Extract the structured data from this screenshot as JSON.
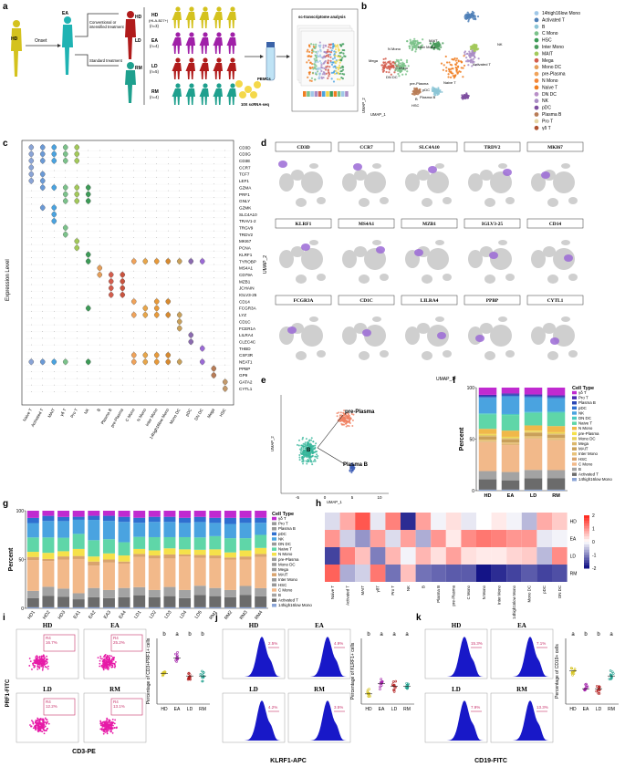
{
  "panels": {
    "a": "a",
    "b": "b",
    "c": "c",
    "d": "d",
    "e": "e",
    "f": "f",
    "g": "g",
    "h": "h",
    "i": "i",
    "j": "j",
    "k": "k"
  },
  "panel_a": {
    "hd": "HD",
    "ea": "EA",
    "onset": "Onset",
    "treat1": "Conventional or",
    "treat2": "intensified treatment",
    "standard": "Standard treatment",
    "hd_big": "HD",
    "ld": "LD",
    "rm": "RM",
    "groups": [
      {
        "label": "HD",
        "sub": "(HLA-B27+)",
        "n": "(n=3)"
      },
      {
        "label": "EA",
        "sub": "",
        "n": "(n=4)"
      },
      {
        "label": "LD",
        "sub": "",
        "n": "(n=5)"
      },
      {
        "label": "RM",
        "sub": "",
        "n": "(n=4)"
      }
    ],
    "pbmcs": "PBMCs",
    "tenx": "10X scRNA-seq",
    "sc_title": "sc-transcriptome analysis"
  },
  "panel_b": {
    "xlabel": "UMAP_1",
    "ylabel": "UMAP_2",
    "labels": [
      "N Mono",
      "C Mono",
      "Inter Mono",
      "pDC",
      "Mega",
      "MAIT",
      "NK",
      "Naive T",
      "Activated T",
      "Plasma B",
      "pre-Plasma",
      "B",
      "HSC",
      "DN DC"
    ],
    "legend": [
      {
        "name": "14high16low Mono",
        "color": "#9fc7e8"
      },
      {
        "name": "Activated T",
        "color": "#4e7fb7"
      },
      {
        "name": "B",
        "color": "#8cc5d6"
      },
      {
        "name": "C Mono",
        "color": "#7bc28a"
      },
      {
        "name": "HSC",
        "color": "#3c9b57"
      },
      {
        "name": "Inter Mono",
        "color": "#4a9b5c"
      },
      {
        "name": "MAIT",
        "color": "#a3c95a"
      },
      {
        "name": "Mega",
        "color": "#d35d4d"
      },
      {
        "name": "Mono DC",
        "color": "#e59e59"
      },
      {
        "name": "pre-Plasma",
        "color": "#f0a35a"
      },
      {
        "name": "N Mono",
        "color": "#f38638"
      },
      {
        "name": "Naive T",
        "color": "#f07d20"
      },
      {
        "name": "DN DC",
        "color": "#b990c8"
      },
      {
        "name": "NK",
        "color": "#a98cc4"
      },
      {
        "name": "pDC",
        "color": "#7e4fa0"
      },
      {
        "name": "Plasma B",
        "color": "#b87c56"
      },
      {
        "name": "Pro T",
        "color": "#e6d5a3"
      },
      {
        "name": "γδ T",
        "color": "#b0522f"
      }
    ]
  },
  "panel_c": {
    "ylabel": "Expression Level",
    "genes": [
      "CD3D",
      "CD3G",
      "CD3E",
      "CCR7",
      "TCF7",
      "LEF1",
      "GZMA",
      "PRF1",
      "GNLY",
      "GZMK",
      "SLC4A10",
      "TRAV1-2",
      "TRGV9",
      "TRDV2",
      "MKI67",
      "PCNA",
      "KLRF1",
      "TYROBP",
      "MS4A1",
      "CD79A",
      "MZB1",
      "JCHAIN",
      "IGLV3-25",
      "CD14",
      "FCGR3A",
      "LYZ",
      "CD1C",
      "FCER1A",
      "LILRA4",
      "CLEC4C",
      "THBD",
      "CSF3R",
      "NEAT1",
      "PPBP",
      "GP9",
      "GATA2",
      "CYTL1"
    ],
    "celltypes": [
      "Naive T",
      "Activated T",
      "MAIT",
      "γδ T",
      "Pro T",
      "NK",
      "B",
      "Plasma B",
      "pre-Plasma",
      "C Mono",
      "N Mono",
      "Inter Mono",
      "14high16low Mono",
      "Mono DC",
      "pDC",
      "DN DC",
      "Mega",
      "HSC"
    ]
  },
  "panel_d": {
    "genes_row1": [
      "CD3D",
      "CCR7",
      "SLC4A10",
      "TRDV2",
      "MKI67"
    ],
    "genes_row2": [
      "KLRF1",
      "MS4A1",
      "MZB1",
      "IGLV3-25",
      "CD14"
    ],
    "genes_row3": [
      "FCGR3A",
      "CD1C",
      "LILRA4",
      "PPBP",
      "CYTL1"
    ],
    "xlabel": "UMAP_1",
    "ylabel": "UMAP_2"
  },
  "panel_e": {
    "labels": [
      "pre-Plasma",
      "B",
      "Plasma B"
    ],
    "xlabel": "UMAP_1",
    "ylabel": "UMAP_2",
    "xticks": [
      "-5",
      "0",
      "5",
      "10"
    ]
  },
  "chart_data": [
    {
      "id": "f",
      "type": "bar",
      "stacked": true,
      "ylabel": "Percent",
      "categories": [
        "HD",
        "EA",
        "LD",
        "RM"
      ],
      "yticks": [
        "0",
        "50",
        "100"
      ],
      "legend_title": "Cell Type",
      "series_order_top_to_bottom": [
        "γδ T",
        "Pro T",
        "Plasma B",
        "pDC",
        "NK",
        "DN DC",
        "Naive T",
        "N Mono",
        "pre-Plasma",
        "Mono DC",
        "Mega",
        "MAIT",
        "Inter Mono",
        "HSC",
        "C Mono",
        "B",
        "Activated T",
        "14high16low Mono"
      ],
      "series": [
        {
          "name": "14high16low Mono",
          "values": [
            1,
            1,
            1,
            1
          ]
        },
        {
          "name": "Activated T",
          "values": [
            10,
            9,
            11,
            11
          ]
        },
        {
          "name": "B",
          "values": [
            8,
            8,
            8,
            8
          ]
        },
        {
          "name": "C Mono",
          "values": [
            28,
            26,
            30,
            29
          ]
        },
        {
          "name": "HSC",
          "values": [
            0.5,
            0.5,
            0.5,
            0.5
          ]
        },
        {
          "name": "Inter Mono",
          "values": [
            2,
            2,
            2,
            2
          ]
        },
        {
          "name": "MAIT",
          "values": [
            3,
            3,
            3,
            3
          ]
        },
        {
          "name": "Mega",
          "values": [
            1,
            1,
            1,
            1
          ]
        },
        {
          "name": "Mono DC",
          "values": [
            1,
            1,
            1,
            1
          ]
        },
        {
          "name": "pre-Plasma",
          "values": [
            0.5,
            0.5,
            0.5,
            0.5
          ]
        },
        {
          "name": "N Mono",
          "values": [
            5,
            6,
            5,
            6
          ]
        },
        {
          "name": "Naive T",
          "values": [
            14,
            15,
            12,
            13
          ]
        },
        {
          "name": "DN DC",
          "values": [
            1,
            1,
            1,
            1
          ]
        },
        {
          "name": "NK",
          "values": [
            15,
            17,
            14,
            13
          ]
        },
        {
          "name": "pDC",
          "values": [
            1,
            1,
            1,
            1
          ]
        },
        {
          "name": "Plasma B",
          "values": [
            1,
            1,
            1,
            1
          ]
        },
        {
          "name": "Pro T",
          "values": [
            1,
            1,
            1,
            1
          ]
        },
        {
          "name": "γδ T",
          "values": [
            7,
            5.5,
            6.5,
            7.5
          ]
        }
      ],
      "colors": {
        "14high16low Mono": "#8aa4d6",
        "Activated T": "#6b6b6b",
        "B": "#a3a3a3",
        "C Mono": "#f2b98a",
        "HSC": "#d9a36e",
        "Inter Mono": "#e8c27a",
        "MAIT": "#c9a05a",
        "Mega": "#dbb66a",
        "Mono DC": "#e8d05a",
        "pre-Plasma": "#f5e14a",
        "N Mono": "#f0b84a",
        "Naive T": "#5fd6a8",
        "DN DC": "#4cc9c0",
        "NK": "#4aa3e0",
        "pDC": "#2f6fd0",
        "Plasma B": "#2b47b5",
        "Pro T": "#4a2ab0",
        "γδ T": "#c02ad0"
      }
    },
    {
      "id": "g",
      "type": "bar",
      "stacked": true,
      "ylabel": "Percent",
      "categories": [
        "HD1",
        "HD2",
        "HD3",
        "EA1",
        "EA2",
        "EA3",
        "EA4",
        "LD1",
        "LD2",
        "LD3",
        "LD4",
        "LD5",
        "RM1",
        "RM2",
        "RM3",
        "RM4"
      ],
      "yticks": [
        "0",
        "50",
        "100"
      ],
      "legend_title": "Cell Type",
      "series": [
        {
          "name": "14high16low Mono",
          "values": [
            1,
            1,
            1,
            1,
            1,
            1,
            1,
            1,
            1,
            1,
            1,
            1,
            1,
            1,
            1,
            1
          ]
        },
        {
          "name": "Activated T",
          "values": [
            9,
            11,
            10,
            8,
            10,
            9,
            10,
            12,
            10,
            11,
            9,
            12,
            11,
            10,
            12,
            11
          ]
        },
        {
          "name": "B",
          "values": [
            7,
            9,
            8,
            6,
            9,
            8,
            9,
            8,
            7,
            9,
            8,
            9,
            8,
            7,
            9,
            8
          ]
        },
        {
          "name": "C Mono",
          "values": [
            30,
            25,
            28,
            34,
            22,
            27,
            24,
            30,
            31,
            28,
            33,
            27,
            29,
            30,
            26,
            31
          ]
        },
        {
          "name": "MAIT",
          "values": [
            3,
            2,
            3,
            3,
            4,
            3,
            2,
            3,
            3,
            4,
            2,
            3,
            3,
            2,
            3,
            3
          ]
        },
        {
          "name": "N Mono",
          "values": [
            5,
            6,
            5,
            7,
            5,
            6,
            6,
            5,
            5,
            6,
            5,
            5,
            6,
            5,
            6,
            6
          ]
        },
        {
          "name": "Naive T",
          "values": [
            14,
            15,
            13,
            15,
            16,
            14,
            13,
            12,
            13,
            11,
            12,
            12,
            13,
            14,
            12,
            13
          ]
        },
        {
          "name": "NK",
          "values": [
            14,
            16,
            16,
            14,
            20,
            18,
            20,
            14,
            15,
            15,
            14,
            15,
            13,
            14,
            15,
            12
          ]
        },
        {
          "name": "pDC",
          "values": [
            5,
            5,
            4,
            3,
            4,
            5,
            5,
            5,
            5,
            5,
            5,
            5,
            5,
            6,
            5,
            5
          ]
        },
        {
          "name": "γδ T",
          "values": [
            7,
            5,
            6,
            6,
            5,
            5,
            6,
            7,
            6,
            6,
            7,
            6,
            7,
            7,
            7,
            7
          ]
        }
      ]
    },
    {
      "id": "h",
      "type": "heatmap",
      "rows": [
        "HD",
        "EA",
        "LD",
        "RM"
      ],
      "columns": [
        "Naive T",
        "Activated T",
        "MAIT",
        "γδT",
        "Pro T",
        "NK",
        "B",
        "Plasma B",
        "pre-Plasma",
        "C Mono",
        "N Mono",
        "Inter Mono",
        "14high16low Mono",
        "Mono DC",
        "pDC",
        "DN DC"
      ],
      "values": [
        [
          -0.3,
          0.8,
          1.6,
          -0.2,
          1.2,
          -1.8,
          0.9,
          -0.1,
          0.3,
          -0.2,
          0.0,
          0.2,
          -0.1,
          -0.6,
          0.8,
          0.5
        ],
        [
          1.0,
          -0.4,
          -0.9,
          0.9,
          -0.3,
          0.9,
          -0.7,
          1.0,
          0.2,
          1.1,
          1.3,
          1.2,
          1.0,
          1.0,
          -0.2,
          -0.1
        ],
        [
          -1.6,
          1.2,
          0.6,
          -1.1,
          0.7,
          -0.1,
          0.7,
          0.3,
          0.9,
          0.3,
          0.2,
          0.2,
          0.4,
          0.5,
          -0.6,
          1.1
        ],
        [
          1.5,
          -0.7,
          -0.4,
          1.3,
          -1.2,
          0.6,
          -1.2,
          -1.3,
          -1.4,
          -1.4,
          -2.0,
          -1.8,
          -1.6,
          -1.4,
          -1.6,
          -1.5
        ]
      ],
      "scale_ticks": [
        "2",
        "1",
        "0",
        "-1",
        "-2"
      ]
    },
    {
      "id": "i",
      "type": "scatter",
      "ylabel": "Percentage of CD3+PRF1+ cells",
      "categories": [
        "HD",
        "EA",
        "LD",
        "RM"
      ],
      "letters": [
        "b",
        "a",
        "b",
        "b"
      ],
      "means": [
        12,
        18,
        11,
        11
      ]
    },
    {
      "id": "j",
      "type": "scatter",
      "ylabel": "Percentage of KLRF1+ cells",
      "categories": [
        "HD",
        "EA",
        "LD",
        "RM"
      ],
      "letters": [
        "b",
        "a",
        "a",
        "a"
      ],
      "means": [
        4,
        8,
        7,
        7
      ]
    },
    {
      "id": "k",
      "type": "scatter",
      "ylabel": "Percentage of CD19+ cells",
      "categories": [
        "HD",
        "EA",
        "LD",
        "RM"
      ],
      "letters": [
        "a",
        "b",
        "b",
        "a"
      ],
      "means": [
        13,
        6,
        6,
        11
      ]
    }
  ],
  "panel_i": {
    "xlabel": "CD3-PE",
    "ylabel": "PRF1-FITC",
    "quads": [
      {
        "group": "HD",
        "gate": "R4",
        "pct": "16.7%"
      },
      {
        "group": "EA",
        "gate": "R4",
        "pct": "25.2%"
      },
      {
        "group": "LD",
        "gate": "R4",
        "pct": "12.2%"
      },
      {
        "group": "RM",
        "gate": "R4",
        "pct": "13.1%"
      }
    ]
  },
  "panel_j": {
    "xlabel": "KLRF1-APC",
    "quads": [
      {
        "group": "HD",
        "pct": "2.5%"
      },
      {
        "group": "EA",
        "pct": "4.9%"
      },
      {
        "group": "LD",
        "pct": "4.2%"
      },
      {
        "group": "RM",
        "pct": "3.5%"
      }
    ]
  },
  "panel_k": {
    "xlabel": "CD19-FITC",
    "quads": [
      {
        "group": "HD",
        "pct": "15.3%"
      },
      {
        "group": "EA",
        "pct": "7.1%"
      },
      {
        "group": "LD",
        "pct": "7.9%"
      },
      {
        "group": "RM",
        "pct": "13.3%"
      }
    ]
  },
  "colors": {
    "hd": "#d4c21e",
    "ea": "#a020a8",
    "ld": "#b01b1b",
    "rm": "#1fa08e",
    "gate": "#c8326b",
    "histo": "#1818c8",
    "dots": "#e61aa7",
    "violet": "#9b6ad6"
  }
}
